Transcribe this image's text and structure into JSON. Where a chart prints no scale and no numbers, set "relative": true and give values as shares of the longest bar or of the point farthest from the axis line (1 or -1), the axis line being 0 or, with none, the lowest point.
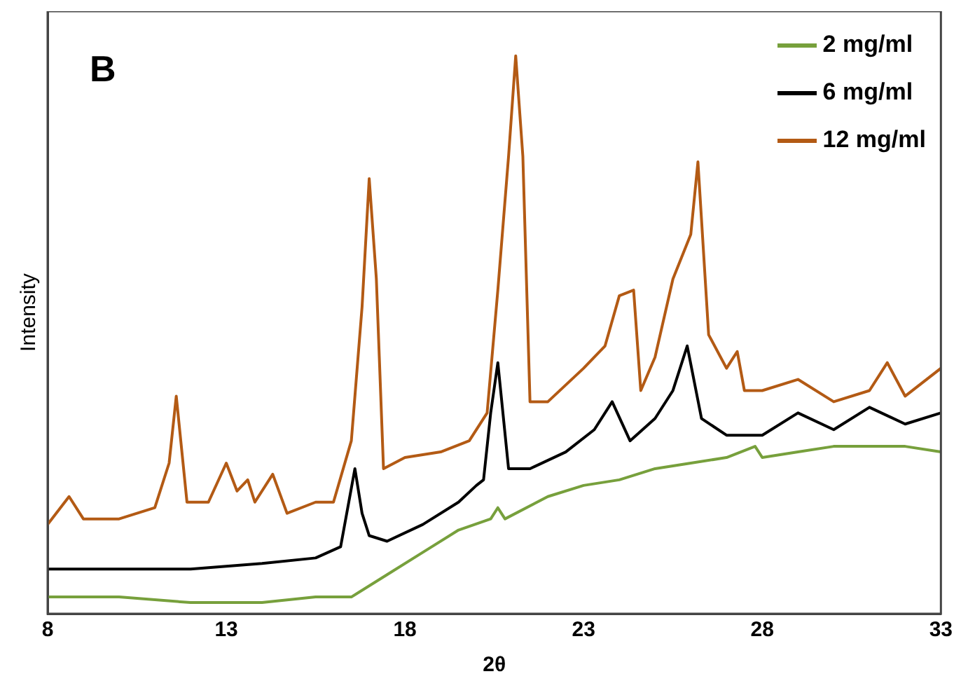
{
  "chart_data": {
    "type": "line",
    "relative": true,
    "xlabel": "2θ",
    "ylabel": "Intensity",
    "annotations": [
      "B"
    ],
    "legend": "top right",
    "tick_labels": "x",
    "marker": "none",
    "line_style": "solid",
    "xlim": [
      8,
      33
    ],
    "xticks": [
      8,
      13,
      18,
      23,
      28,
      33
    ],
    "series": [
      {
        "name": "2 mg/ml",
        "color": "#77a03c",
        "x": [
          8,
          10,
          12,
          14,
          15.5,
          16.5,
          17.5,
          18.5,
          19.5,
          20.4,
          20.6,
          20.8,
          22,
          23,
          24,
          25,
          26,
          27,
          27.8,
          28,
          29,
          30,
          31,
          32,
          33
        ],
        "values": [
          0.03,
          0.03,
          0.02,
          0.02,
          0.03,
          0.03,
          0.07,
          0.11,
          0.15,
          0.17,
          0.19,
          0.17,
          0.21,
          0.23,
          0.24,
          0.26,
          0.27,
          0.28,
          0.3,
          0.28,
          0.29,
          0.3,
          0.3,
          0.3,
          0.29
        ]
      },
      {
        "name": "6 mg/ml",
        "color": "#000000",
        "x": [
          8,
          10,
          12,
          14,
          15.5,
          16.2,
          16.6,
          16.8,
          17,
          17.5,
          18.5,
          19.5,
          20,
          20.2,
          20.4,
          20.6,
          20.9,
          21.5,
          22.5,
          23.3,
          23.8,
          24.3,
          25,
          25.5,
          25.9,
          26.3,
          27,
          28,
          29,
          30,
          31,
          32,
          33
        ],
        "values": [
          0.08,
          0.08,
          0.08,
          0.09,
          0.1,
          0.12,
          0.26,
          0.18,
          0.14,
          0.13,
          0.16,
          0.2,
          0.23,
          0.24,
          0.36,
          0.45,
          0.26,
          0.26,
          0.29,
          0.33,
          0.38,
          0.31,
          0.35,
          0.4,
          0.48,
          0.35,
          0.32,
          0.32,
          0.36,
          0.33,
          0.37,
          0.34,
          0.36
        ]
      },
      {
        "name": "12 mg/ml",
        "color": "#b35a14",
        "x": [
          8,
          8.6,
          9,
          10,
          11,
          11.4,
          11.6,
          11.9,
          12.5,
          13,
          13.3,
          13.6,
          13.8,
          14.3,
          14.7,
          15.5,
          16,
          16.5,
          16.8,
          17,
          17.2,
          17.4,
          18,
          19,
          19.8,
          20.3,
          20.6,
          20.9,
          21.1,
          21.3,
          21.5,
          22,
          23,
          23.6,
          24,
          24.4,
          24.6,
          25,
          25.5,
          26,
          26.2,
          26.5,
          27,
          27.3,
          27.5,
          28,
          29,
          30,
          31,
          31.5,
          32,
          33
        ],
        "values": [
          0.16,
          0.21,
          0.17,
          0.17,
          0.19,
          0.27,
          0.39,
          0.2,
          0.2,
          0.27,
          0.22,
          0.24,
          0.2,
          0.25,
          0.18,
          0.2,
          0.2,
          0.31,
          0.55,
          0.78,
          0.6,
          0.26,
          0.28,
          0.29,
          0.31,
          0.36,
          0.58,
          0.82,
          1,
          0.82,
          0.38,
          0.38,
          0.44,
          0.48,
          0.57,
          0.58,
          0.4,
          0.46,
          0.6,
          0.68,
          0.81,
          0.5,
          0.44,
          0.47,
          0.4,
          0.4,
          0.42,
          0.38,
          0.4,
          0.45,
          0.39,
          0.44
        ]
      }
    ]
  }
}
